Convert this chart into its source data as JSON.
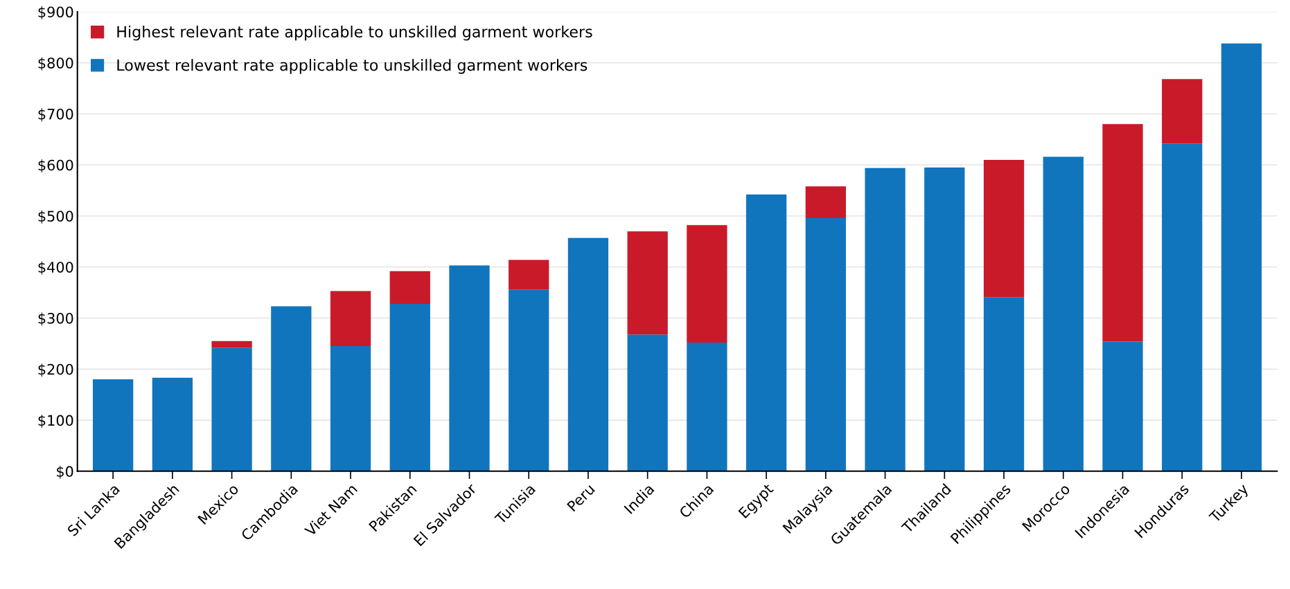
{
  "chart_data": {
    "type": "bar",
    "stacked": true,
    "categories": [
      "Sri Lanka",
      "Bangladesh",
      "Mexico",
      "Cambodia",
      "Viet Nam",
      "Pakistan",
      "El Salvador",
      "Tunisia",
      "Peru",
      "India",
      "China",
      "Egypt",
      "Malaysia",
      "Guatemala",
      "Thailand",
      "Philippines",
      "Morocco",
      "Indonesia",
      "Honduras",
      "Turkey"
    ],
    "series": [
      {
        "name": "Lowest relevant rate applicable to unskilled garment workers",
        "color": "#1175be",
        "values": [
          180,
          183,
          242,
          323,
          245,
          328,
          403,
          356,
          457,
          268,
          252,
          542,
          496,
          594,
          595,
          341,
          616,
          254,
          642,
          838
        ]
      },
      {
        "name": "Highest relevant rate applicable to unskilled garment workers",
        "color": "#c91a2a",
        "values": [
          null,
          null,
          13,
          null,
          108,
          64,
          null,
          58,
          null,
          202,
          230,
          null,
          62,
          null,
          null,
          269,
          null,
          426,
          126,
          null
        ]
      }
    ],
    "ylim": [
      0,
      900
    ],
    "yticks": [
      {
        "value": 0,
        "label": "$0"
      },
      {
        "value": 100,
        "label": "$100"
      },
      {
        "value": 200,
        "label": "$200"
      },
      {
        "value": 300,
        "label": "$300"
      },
      {
        "value": 400,
        "label": "$400"
      },
      {
        "value": 500,
        "label": "$500"
      },
      {
        "value": 600,
        "label": "$600"
      },
      {
        "value": 700,
        "label": "$700"
      },
      {
        "value": 800,
        "label": "$800"
      },
      {
        "value": 900,
        "label": "$900"
      }
    ],
    "grid": "y",
    "legend": "top left"
  }
}
